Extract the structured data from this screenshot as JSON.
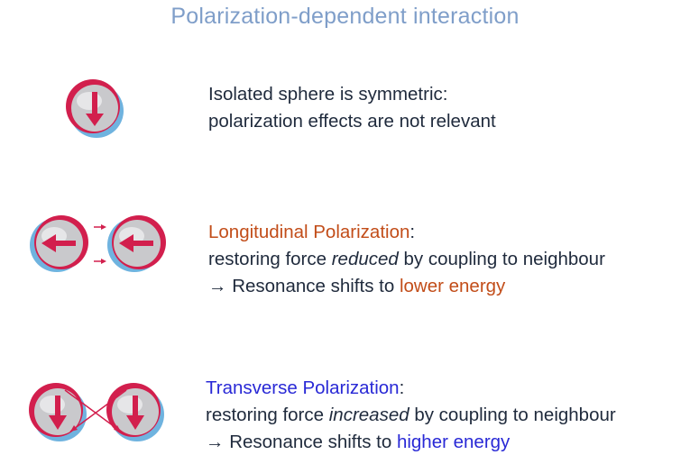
{
  "title": "Polarization-dependent interaction",
  "colors": {
    "title": "#7f9ec9",
    "body_text": "#1f2a3c",
    "longitudinal_accent": "#c24d19",
    "transverse_accent": "#2929d6",
    "arrow": "#d21f4d",
    "sphere": "#c9c9cc",
    "rim_blue": "#6fb3df"
  },
  "isolated": {
    "line1": "Isolated sphere is symmetric:",
    "line2": "polarization effects are not relevant"
  },
  "longitudinal": {
    "heading": "Longitudinal Polarization",
    "heading_suffix": ":",
    "line2_pre": "restoring force ",
    "line2_emph": "reduced",
    "line2_post": " by coupling to neighbour",
    "line3_pre": "→ Resonance shifts to ",
    "line3_accent": "lower energy"
  },
  "transverse": {
    "heading": "Transverse Polarization",
    "heading_suffix": ":",
    "line2_pre": "restoring force ",
    "line2_emph": "increased",
    "line2_post": " by coupling to neighbour",
    "line3_pre": "→ Resonance shifts to ",
    "line3_accent": "higher energy"
  }
}
